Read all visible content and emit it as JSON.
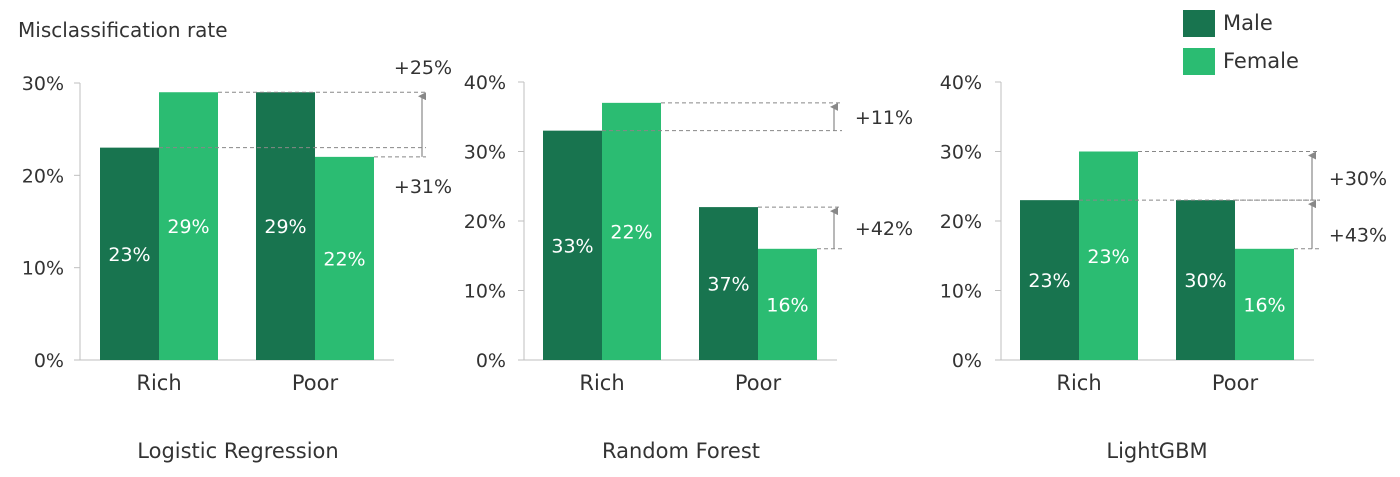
{
  "y_axis_label": "Misclassification rate",
  "legend": [
    {
      "label": "Male",
      "color": "#18744f"
    },
    {
      "label": "Female",
      "color": "#2bbc72"
    }
  ],
  "chart_data": [
    {
      "type": "bar",
      "title": "Logistic Regression",
      "categories": [
        "Rich",
        "Poor"
      ],
      "series": [
        {
          "name": "Male",
          "values": [
            23,
            29
          ]
        },
        {
          "name": "Female",
          "values": [
            29,
            22
          ]
        }
      ],
      "data_labels": [
        [
          "23%",
          "29%"
        ],
        [
          "29%",
          "22%"
        ]
      ],
      "ylim": [
        0,
        30
      ],
      "yticks": [
        0,
        10,
        20,
        30
      ],
      "ytick_labels": [
        "0%",
        "10%",
        "20%",
        "30%"
      ],
      "annotations": [
        {
          "text": "+25%",
          "position": "above"
        },
        {
          "text": "+31%",
          "position": "below"
        }
      ]
    },
    {
      "type": "bar",
      "title": "Random Forest",
      "categories": [
        "Rich",
        "Poor"
      ],
      "series": [
        {
          "name": "Male",
          "values": [
            33,
            22
          ]
        },
        {
          "name": "Female",
          "values": [
            37,
            16
          ]
        }
      ],
      "data_labels": [
        [
          "33%",
          "22%"
        ],
        [
          "37%",
          "16%"
        ]
      ],
      "ylim": [
        0,
        40
      ],
      "yticks": [
        0,
        10,
        20,
        30,
        40
      ],
      "ytick_labels": [
        "0%",
        "10%",
        "20%",
        "30%",
        "40%"
      ],
      "annotations": [
        {
          "text": "+11%",
          "position": "right"
        },
        {
          "text": "+42%",
          "position": "right"
        }
      ]
    },
    {
      "type": "bar",
      "title": "LightGBM",
      "categories": [
        "Rich",
        "Poor"
      ],
      "series": [
        {
          "name": "Male",
          "values": [
            23,
            23
          ]
        },
        {
          "name": "Female",
          "values": [
            30,
            16
          ]
        }
      ],
      "data_labels": [
        [
          "23%",
          "23%"
        ],
        [
          "30%",
          "16%"
        ]
      ],
      "ylim": [
        0,
        40
      ],
      "yticks": [
        0,
        10,
        20,
        30,
        40
      ],
      "ytick_labels": [
        "0%",
        "10%",
        "20%",
        "30%",
        "40%"
      ],
      "annotations": [
        {
          "text": "+30%",
          "position": "right"
        },
        {
          "text": "+43%",
          "position": "right"
        }
      ]
    }
  ]
}
